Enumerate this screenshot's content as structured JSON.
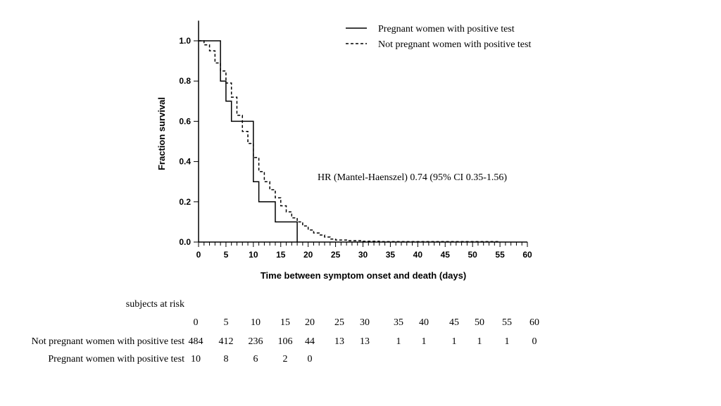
{
  "chart_data": {
    "type": "line",
    "step": true,
    "xlabel": "Time between symptom onset and death (days)",
    "ylabel": "Fraction survival",
    "xlim": [
      0,
      60
    ],
    "ylim": [
      0,
      1.1
    ],
    "x_ticks": [
      0,
      5,
      10,
      15,
      20,
      25,
      30,
      35,
      40,
      45,
      50,
      55,
      60
    ],
    "y_ticks": [
      0.0,
      0.2,
      0.4,
      0.6,
      0.8,
      1.0
    ],
    "x_tick_labels": [
      "0",
      "5",
      "10",
      "15",
      "20",
      "25",
      "30",
      "35",
      "40",
      "45",
      "50",
      "55",
      "60"
    ],
    "y_tick_labels": [
      "0.0",
      "0.2",
      "0.4",
      "0.6",
      "0.8",
      "1.0"
    ],
    "grid": false,
    "legend_position": "top-right",
    "annotation": "HR (Mantel-Haenszel) 0.74 (95% CI 0.35-1.56)",
    "series": [
      {
        "name": "Pregnant women with positive test",
        "style": "solid",
        "color": "#000000",
        "x": [
          0,
          4,
          5,
          6,
          10,
          11,
          14,
          18
        ],
        "y": [
          1.0,
          0.8,
          0.7,
          0.6,
          0.3,
          0.2,
          0.1,
          0.0
        ]
      },
      {
        "name": "Not pregnant women with positive test",
        "style": "dashed",
        "color": "#000000",
        "x": [
          0,
          1,
          2,
          3,
          4,
          5,
          6,
          7,
          8,
          9,
          10,
          11,
          12,
          13,
          14,
          15,
          16,
          17,
          18,
          19,
          20,
          21,
          22,
          23,
          24,
          25,
          27,
          30,
          33,
          55
        ],
        "y": [
          1.0,
          0.98,
          0.95,
          0.89,
          0.85,
          0.79,
          0.72,
          0.63,
          0.55,
          0.49,
          0.42,
          0.35,
          0.3,
          0.26,
          0.22,
          0.18,
          0.15,
          0.12,
          0.1,
          0.08,
          0.06,
          0.045,
          0.035,
          0.025,
          0.015,
          0.01,
          0.007,
          0.004,
          0.002,
          0.0
        ]
      }
    ]
  },
  "risk_table": {
    "title": "subjects at risk",
    "times": [
      "0",
      "5",
      "10",
      "15",
      "20",
      "25",
      "30",
      "35",
      "40",
      "45",
      "50",
      "55",
      "60"
    ],
    "rows": [
      {
        "label": "Not pregnant women with positive test",
        "values": [
          "484",
          "412",
          "236",
          "106",
          "44",
          "13",
          "13",
          "1",
          "1",
          "1",
          "1",
          "1",
          "0"
        ]
      },
      {
        "label": "Pregnant women with positive test",
        "values": [
          "10",
          "8",
          "6",
          "2",
          "0",
          "",
          "",
          "",
          "",
          "",
          "",
          "",
          ""
        ]
      }
    ]
  }
}
